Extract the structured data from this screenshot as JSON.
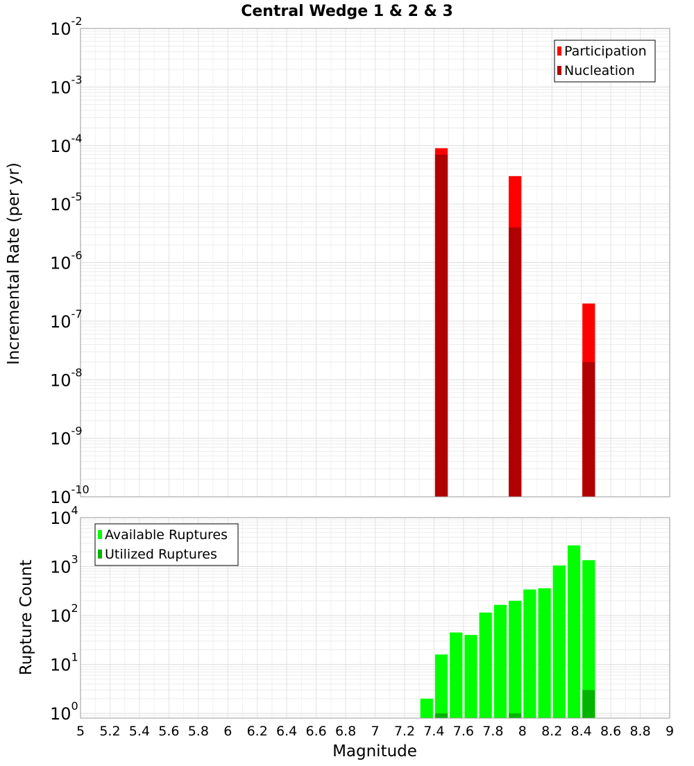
{
  "chart_data": [
    {
      "type": "bar",
      "title": "Central Wedge 1 & 2 & 3",
      "xlabel": "",
      "ylabel": "Incremental Rate (per yr)",
      "xlim": [
        5,
        9
      ],
      "ylim": [
        1e-10,
        0.01
      ],
      "yscale": "log",
      "y_tick_exponents": [
        -10,
        -9,
        -8,
        -7,
        -6,
        -5,
        -4,
        -3,
        -2
      ],
      "grid": true,
      "legend_position": "top-right",
      "bar_width": 0.1,
      "series": [
        {
          "name": "Participation",
          "color": "#ff0000",
          "x": [
            7.45,
            7.95,
            8.45
          ],
          "values": [
            9e-05,
            3e-05,
            2e-07
          ]
        },
        {
          "name": "Nucleation",
          "color": "#b00000",
          "x": [
            7.45,
            7.95,
            8.45
          ],
          "values": [
            7e-05,
            4e-06,
            2e-08
          ]
        }
      ]
    },
    {
      "type": "bar",
      "title": "",
      "xlabel": "Magnitude",
      "ylabel": "Rupture Count",
      "xlim": [
        5,
        9
      ],
      "ylim": [
        0.8,
        10000
      ],
      "yscale": "log",
      "y_tick_exponents": [
        0,
        1,
        2,
        3,
        4
      ],
      "x_ticks": [
        "5",
        "5.2",
        "5.4",
        "5.6",
        "5.8",
        "6",
        "6.2",
        "6.4",
        "6.6",
        "6.8",
        "7",
        "7.2",
        "7.4",
        "7.6",
        "7.8",
        "8",
        "8.2",
        "8.4",
        "8.6",
        "8.8",
        "9"
      ],
      "grid": true,
      "legend_position": "top-left",
      "bar_width": 0.1,
      "series": [
        {
          "name": "Available Ruptures",
          "color": "#00ff00",
          "x": [
            7.35,
            7.45,
            7.55,
            7.65,
            7.75,
            7.85,
            7.95,
            8.05,
            8.15,
            8.25,
            8.35,
            8.45
          ],
          "values": [
            2,
            16,
            45,
            40,
            115,
            165,
            200,
            340,
            360,
            1050,
            2700,
            1350
          ]
        },
        {
          "name": "Utilized Ruptures",
          "color": "#00b400",
          "x": [
            7.45,
            7.95,
            8.45
          ],
          "values": [
            1,
            1,
            3
          ]
        }
      ]
    }
  ]
}
